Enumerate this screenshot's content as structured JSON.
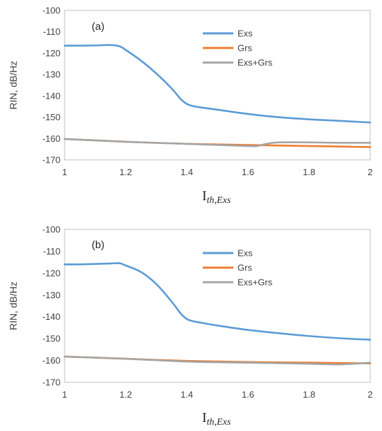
{
  "chart_data": [
    {
      "type": "line",
      "panel_label": "(a)",
      "xlabel_main": "I",
      "xlabel_sub": "th,Exs",
      "ylabel": "RIN, dB/Hz",
      "xlim": [
        1,
        2
      ],
      "ylim": [
        -170,
        -100
      ],
      "xticks": [
        "1",
        "1.2",
        "1.4",
        "1.6",
        "1.8",
        "2"
      ],
      "yticks": [
        "-100",
        "-110",
        "-120",
        "-130",
        "-140",
        "-150",
        "-160",
        "-170"
      ],
      "grid": false,
      "legend_position": "top-right",
      "series": [
        {
          "name": "Exs",
          "color": "#5B9BD5",
          "x": [
            1.0,
            1.05,
            1.1,
            1.15,
            1.18,
            1.2,
            1.25,
            1.3,
            1.35,
            1.38,
            1.4,
            1.42,
            1.45,
            1.5,
            1.6,
            1.7,
            1.8,
            1.9,
            2.0
          ],
          "y": [
            -116.5,
            -116.5,
            -116.4,
            -116.2,
            -116.8,
            -118.5,
            -123.5,
            -129.5,
            -136.5,
            -141.5,
            -143.8,
            -144.8,
            -145.5,
            -146.5,
            -148.5,
            -150,
            -151,
            -151.7,
            -152.5
          ]
        },
        {
          "name": "Grs",
          "color": "#ED7D31",
          "x": [
            1.0,
            1.2,
            1.4,
            1.6,
            1.8,
            2.0
          ],
          "y": [
            -160.2,
            -161.5,
            -162.5,
            -163,
            -163.5,
            -164
          ]
        },
        {
          "name": "Exs+Grs",
          "color": "#A5A5A5",
          "x": [
            1.0,
            1.2,
            1.4,
            1.5,
            1.6,
            1.63,
            1.66,
            1.7,
            1.8,
            1.9,
            2.0
          ],
          "y": [
            -160.2,
            -161.5,
            -162.5,
            -163,
            -163.5,
            -163.5,
            -162.5,
            -161.8,
            -161.8,
            -162,
            -162
          ]
        }
      ]
    },
    {
      "type": "line",
      "panel_label": "(b)",
      "xlabel_main": "I",
      "xlabel_sub": "th,Exs",
      "ylabel": "RIN, dB/Hz",
      "xlim": [
        1,
        2
      ],
      "ylim": [
        -170,
        -100
      ],
      "xticks": [
        "1",
        "1.2",
        "1.4",
        "1.6",
        "1.8",
        "2"
      ],
      "yticks": [
        "-100",
        "-110",
        "-120",
        "-130",
        "-140",
        "-150",
        "-160",
        "-170"
      ],
      "grid": false,
      "legend_position": "top-right",
      "series": [
        {
          "name": "Exs",
          "color": "#5B9BD5",
          "x": [
            1.0,
            1.05,
            1.1,
            1.15,
            1.18,
            1.2,
            1.25,
            1.3,
            1.35,
            1.38,
            1.4,
            1.42,
            1.45,
            1.5,
            1.6,
            1.7,
            1.8,
            1.9,
            2.0
          ],
          "y": [
            -116,
            -116,
            -115.8,
            -115.6,
            -115.5,
            -116.5,
            -119.5,
            -125,
            -133,
            -138.5,
            -141,
            -142,
            -142.8,
            -144,
            -146,
            -147.5,
            -148.8,
            -149.8,
            -150.5
          ]
        },
        {
          "name": "Grs",
          "color": "#ED7D31",
          "x": [
            1.0,
            1.2,
            1.4,
            1.6,
            1.8,
            2.0
          ],
          "y": [
            -158.2,
            -159.2,
            -160.2,
            -160.7,
            -161,
            -161.3
          ]
        },
        {
          "name": "Exs+Grs",
          "color": "#A5A5A5",
          "x": [
            1.0,
            1.2,
            1.4,
            1.6,
            1.8,
            1.9,
            2.0
          ],
          "y": [
            -158.2,
            -159.2,
            -160.5,
            -161,
            -161.5,
            -161.8,
            -161
          ]
        }
      ]
    }
  ]
}
